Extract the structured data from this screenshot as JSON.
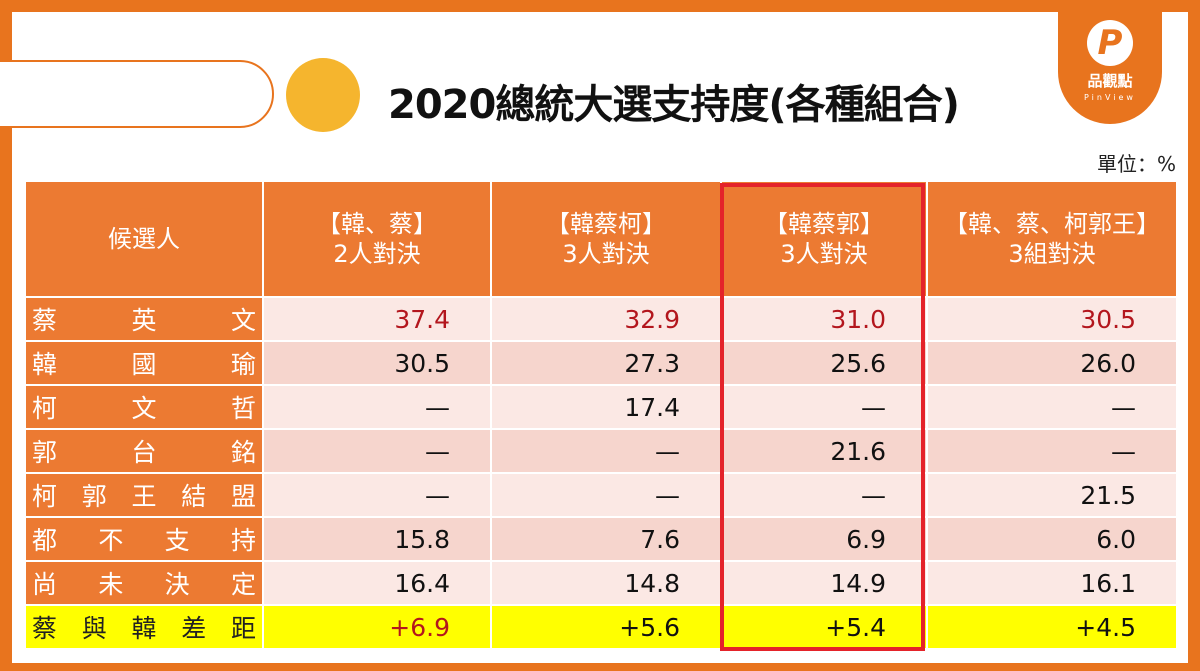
{
  "title": "2020總統大選支持度(各種組合)",
  "unit": "單位：%",
  "logo": {
    "cn": "品觀點",
    "en": "PinView",
    "mark": "P"
  },
  "colors": {
    "accent": "#e8741e",
    "header": "#ec7a32",
    "highlight_box": "#e4232a",
    "lead": "#b3161d",
    "diff_row": "#ffff00"
  },
  "chart_data": {
    "type": "table",
    "columns": [
      {
        "line1": "候選人",
        "line2": ""
      },
      {
        "line1": "【韓、蔡】",
        "line2": "2人對決"
      },
      {
        "line1": "【韓蔡柯】",
        "line2": "3人對決"
      },
      {
        "line1": "【韓蔡郭】",
        "line2": "3人對決"
      },
      {
        "line1": "【韓、蔡、柯郭王】",
        "line2": "3組對決"
      }
    ],
    "highlighted_column": 3,
    "rows": [
      {
        "name": [
          "蔡",
          "英",
          "文"
        ],
        "values": [
          "37.4",
          "32.9",
          "31.0",
          "30.5"
        ],
        "red": true
      },
      {
        "name": [
          "韓",
          "國",
          "瑜"
        ],
        "values": [
          "30.5",
          "27.3",
          "25.6",
          "26.0"
        ]
      },
      {
        "name": [
          "柯",
          "文",
          "哲"
        ],
        "values": [
          "—",
          "17.4",
          "—",
          "—"
        ]
      },
      {
        "name": [
          "郭",
          "台",
          "銘"
        ],
        "values": [
          "—",
          "—",
          "21.6",
          "—"
        ]
      },
      {
        "name": [
          "柯",
          "郭",
          "王",
          "結",
          "盟"
        ],
        "values": [
          "—",
          "—",
          "—",
          "21.5"
        ]
      },
      {
        "name": [
          "都",
          "不",
          "支",
          "持"
        ],
        "values": [
          "15.8",
          "7.6",
          "6.9",
          "6.0"
        ]
      },
      {
        "name": [
          "尚",
          "未",
          "決",
          "定"
        ],
        "values": [
          "16.4",
          "14.8",
          "14.9",
          "16.1"
        ]
      }
    ],
    "diff_row": {
      "name": [
        "蔡",
        "與",
        "韓",
        "差",
        "距"
      ],
      "values": [
        "+6.9",
        "+5.6",
        "+5.4",
        "+4.5"
      ]
    }
  }
}
